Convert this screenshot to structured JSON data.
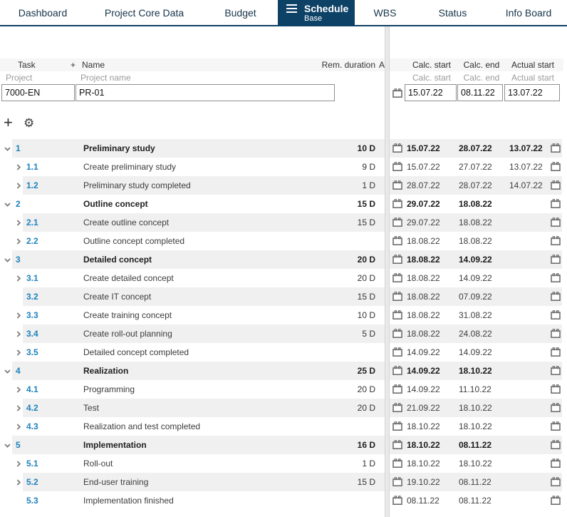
{
  "tabs": [
    {
      "label": "Dashboard"
    },
    {
      "label": "Project Core Data"
    },
    {
      "label": "Budget"
    },
    {
      "label": "Schedule",
      "active": true,
      "sublabel": "Base"
    },
    {
      "label": "WBS"
    },
    {
      "label": "Status"
    },
    {
      "label": "Info Board"
    }
  ],
  "columns": {
    "task": "Task",
    "name_prefix": "+",
    "name": "Name",
    "rem_duration": "Rem. duration",
    "attachment": "A",
    "calc_start": "Calc. start",
    "calc_end": "Calc. end",
    "actual_start": "Actual start"
  },
  "subcolumns": {
    "project": "Project",
    "project_name": "Project name",
    "calc_start": "Calc. start",
    "calc_end": "Calc. end",
    "actual_start": "Actual start"
  },
  "project": {
    "id": "7000-EN",
    "name": "PR-01",
    "calc_start": "15.07.22",
    "calc_end": "08.11.22",
    "actual_start": "13.07.22"
  },
  "toolbar": {
    "add_icon": "+",
    "gear_icon": "⚙"
  },
  "tasks": [
    {
      "number": "1",
      "name": "Preliminary study",
      "duration": "10 D",
      "calc_start": "15.07.22",
      "calc_end": "28.07.22",
      "actual_start": "13.07.22",
      "level": 1,
      "expander": "expanded"
    },
    {
      "number": "1.1",
      "name": "Create preliminary study",
      "duration": "9 D",
      "calc_start": "15.07.22",
      "calc_end": "27.07.22",
      "actual_start": "13.07.22",
      "level": 2,
      "expander": "collapsed"
    },
    {
      "number": "1.2",
      "name": "Preliminary study completed",
      "duration": "1 D",
      "calc_start": "28.07.22",
      "calc_end": "28.07.22",
      "actual_start": "14.07.22",
      "level": 2,
      "expander": "collapsed"
    },
    {
      "number": "2",
      "name": "Outline concept",
      "duration": "15 D",
      "calc_start": "29.07.22",
      "calc_end": "18.08.22",
      "actual_start": "",
      "level": 1,
      "expander": "expanded"
    },
    {
      "number": "2.1",
      "name": "Create outline concept",
      "duration": "15 D",
      "calc_start": "29.07.22",
      "calc_end": "18.08.22",
      "actual_start": "",
      "level": 2,
      "expander": "collapsed"
    },
    {
      "number": "2.2",
      "name": "Outline concept completed",
      "duration": "",
      "calc_start": "18.08.22",
      "calc_end": "18.08.22",
      "actual_start": "",
      "level": 2,
      "expander": "collapsed"
    },
    {
      "number": "3",
      "name": "Detailed concept",
      "duration": "20 D",
      "calc_start": "18.08.22",
      "calc_end": "14.09.22",
      "actual_start": "",
      "level": 1,
      "expander": "expanded"
    },
    {
      "number": "3.1",
      "name": "Create detailed concept",
      "duration": "20 D",
      "calc_start": "18.08.22",
      "calc_end": "14.09.22",
      "actual_start": "",
      "level": 2,
      "expander": "collapsed"
    },
    {
      "number": "3.2",
      "name": "Create IT concept",
      "duration": "15 D",
      "calc_start": "18.08.22",
      "calc_end": "07.09.22",
      "actual_start": "",
      "level": 2,
      "expander": "none"
    },
    {
      "number": "3.3",
      "name": "Create training concept",
      "duration": "10 D",
      "calc_start": "18.08.22",
      "calc_end": "31.08.22",
      "actual_start": "",
      "level": 2,
      "expander": "collapsed"
    },
    {
      "number": "3.4",
      "name": "Create roll-out planning",
      "duration": "5 D",
      "calc_start": "18.08.22",
      "calc_end": "24.08.22",
      "actual_start": "",
      "level": 2,
      "expander": "collapsed"
    },
    {
      "number": "3.5",
      "name": "Detailed concept completed",
      "duration": "",
      "calc_start": "14.09.22",
      "calc_end": "14.09.22",
      "actual_start": "",
      "level": 2,
      "expander": "collapsed"
    },
    {
      "number": "4",
      "name": "Realization",
      "duration": "25 D",
      "calc_start": "14.09.22",
      "calc_end": "18.10.22",
      "actual_start": "",
      "level": 1,
      "expander": "expanded"
    },
    {
      "number": "4.1",
      "name": "Programming",
      "duration": "20 D",
      "calc_start": "14.09.22",
      "calc_end": "11.10.22",
      "actual_start": "",
      "level": 2,
      "expander": "collapsed"
    },
    {
      "number": "4.2",
      "name": "Test",
      "duration": "20 D",
      "calc_start": "21.09.22",
      "calc_end": "18.10.22",
      "actual_start": "",
      "level": 2,
      "expander": "collapsed"
    },
    {
      "number": "4.3",
      "name": "Realization and test completed",
      "duration": "",
      "calc_start": "18.10.22",
      "calc_end": "18.10.22",
      "actual_start": "",
      "level": 2,
      "expander": "collapsed"
    },
    {
      "number": "5",
      "name": "Implementation",
      "duration": "16 D",
      "calc_start": "18.10.22",
      "calc_end": "08.11.22",
      "actual_start": "",
      "level": 1,
      "expander": "expanded"
    },
    {
      "number": "5.1",
      "name": "Roll-out",
      "duration": "1 D",
      "calc_start": "18.10.22",
      "calc_end": "18.10.22",
      "actual_start": "",
      "level": 2,
      "expander": "collapsed"
    },
    {
      "number": "5.2",
      "name": "End-user training",
      "duration": "15 D",
      "calc_start": "19.10.22",
      "calc_end": "08.11.22",
      "actual_start": "",
      "level": 2,
      "expander": "collapsed"
    },
    {
      "number": "5.3",
      "name": "Implementation finished",
      "duration": "",
      "calc_start": "08.11.22",
      "calc_end": "08.11.22",
      "actual_start": "",
      "level": 2,
      "expander": "none"
    }
  ],
  "colors": {
    "accent_navy": "#0e4166",
    "task_number_blue": "#1d82be",
    "row_alt_grey": "#f0f0f0"
  }
}
